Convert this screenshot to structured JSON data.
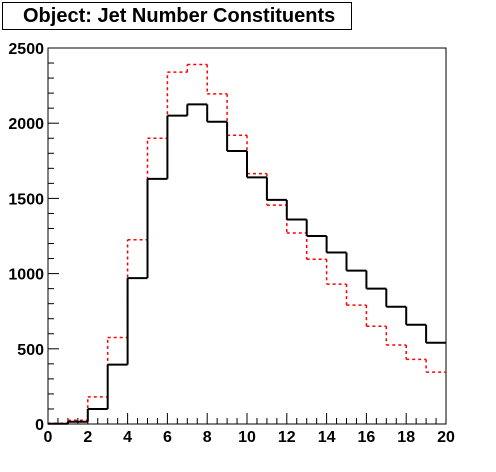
{
  "title": "Object: Jet Number Constituents",
  "chart_data": {
    "type": "histogram",
    "title": "Object: Jet Number Constituents",
    "xlim": [
      0,
      20
    ],
    "ylim": [
      0,
      2500
    ],
    "bin_edges": [
      0,
      1,
      2,
      3,
      4,
      5,
      6,
      7,
      8,
      9,
      10,
      11,
      12,
      13,
      14,
      15,
      16,
      17,
      18,
      19,
      20
    ],
    "x_ticks": [
      "0",
      "2",
      "4",
      "6",
      "8",
      "10",
      "12",
      "14",
      "16",
      "18",
      "20"
    ],
    "y_ticks": [
      "0",
      "500",
      "1000",
      "1500",
      "2000",
      "2500"
    ],
    "grid": false,
    "legend": "none",
    "series": [
      {
        "color": "#000000",
        "style": "solid",
        "values": [
          2,
          15,
          100,
          395,
          970,
          1630,
          2050,
          2125,
          2010,
          1815,
          1640,
          1490,
          1360,
          1250,
          1140,
          1020,
          900,
          780,
          660,
          540
        ]
      },
      {
        "color": "#ff0000",
        "style": "dashed",
        "values": [
          5,
          25,
          180,
          575,
          1225,
          1900,
          2340,
          2390,
          2195,
          1920,
          1665,
          1455,
          1270,
          1095,
          930,
          790,
          650,
          525,
          430,
          345
        ]
      }
    ]
  }
}
